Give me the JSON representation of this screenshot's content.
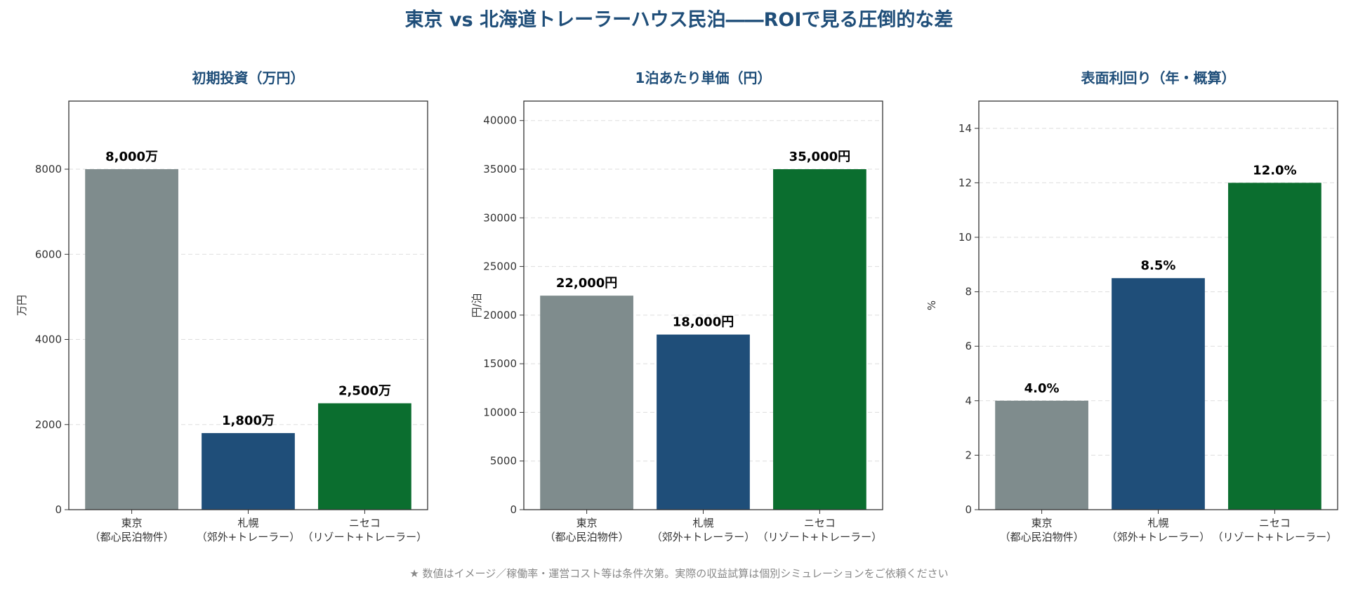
{
  "title": "東京 vs 北海道トレーラーハウス民泊――ROIで見る圧倒的な差",
  "footnote": "★ 数値はイメージ／稼働率・運営コスト等は条件次第。実際の収益試算は個別シミュレーションをご依頼ください",
  "colors": {
    "title": "#1f4e79",
    "tokyo": "#7f8c8d",
    "sapporo": "#1f4e79",
    "niseko": "#0b6e2f"
  },
  "chart_data": [
    {
      "type": "bar",
      "title": "初期投資（万円）",
      "ylabel": "万円",
      "categories": [
        "東京\n（都心民泊物件）",
        "札幌\n（郊外+トレーラー）",
        "ニセコ\n（リゾート+トレーラー）"
      ],
      "values": [
        8000,
        1800,
        2500
      ],
      "data_labels": [
        "8,000万",
        "1,800万",
        "2,500万"
      ],
      "yticks": [
        0,
        2000,
        4000,
        6000,
        8000
      ],
      "ylim": [
        0,
        9600
      ],
      "grid": "y-dashed"
    },
    {
      "type": "bar",
      "title": "1泊あたり単価（円）",
      "ylabel": "円/泊",
      "categories": [
        "東京\n（都心民泊物件）",
        "札幌\n（郊外+トレーラー）",
        "ニセコ\n（リゾート+トレーラー）"
      ],
      "values": [
        22000,
        18000,
        35000
      ],
      "data_labels": [
        "22,000円",
        "18,000円",
        "35,000円"
      ],
      "yticks": [
        0,
        5000,
        10000,
        15000,
        20000,
        25000,
        30000,
        35000,
        40000
      ],
      "ylim": [
        0,
        42000
      ],
      "grid": "y-dashed"
    },
    {
      "type": "bar",
      "title": "表面利回り（年・概算）",
      "ylabel": "%",
      "categories": [
        "東京\n（都心民泊物件）",
        "札幌\n（郊外+トレーラー）",
        "ニセコ\n（リゾート+トレーラー）"
      ],
      "values": [
        4.0,
        8.5,
        12.0
      ],
      "data_labels": [
        "4.0%",
        "8.5%",
        "12.0%"
      ],
      "yticks": [
        0,
        2,
        4,
        6,
        8,
        10,
        12,
        14
      ],
      "ylim": [
        0,
        15
      ],
      "grid": "y-dashed"
    }
  ]
}
